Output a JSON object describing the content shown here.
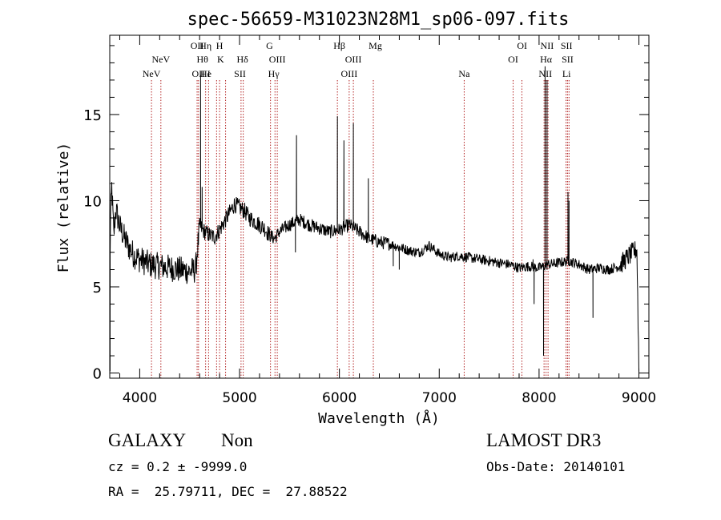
{
  "chart_data": {
    "type": "line",
    "title": "spec-56659-M31023N28M1_sp06-097.fits",
    "xlabel": "Wavelength (Å)",
    "ylabel": "Flux (relative)",
    "xlim": [
      3700,
      9100
    ],
    "ylim": [
      -0.3,
      19.6
    ],
    "xticks": [
      4000,
      5000,
      6000,
      7000,
      8000,
      9000
    ],
    "xtick_labels": [
      "4000",
      "5000",
      "6000",
      "7000",
      "8000",
      "9000"
    ],
    "yticks": [
      0,
      5,
      10,
      15
    ],
    "ytick_labels": [
      "0",
      "5",
      "10",
      "15"
    ],
    "series": [
      {
        "name": "spectrum",
        "anchors": [
          [
            3700,
            2.0
          ],
          [
            3705,
            8.5
          ],
          [
            3720,
            10.8
          ],
          [
            3740,
            8.0
          ],
          [
            3760,
            9.5
          ],
          [
            3800,
            8.5
          ],
          [
            3850,
            7.8
          ],
          [
            3900,
            7.2
          ],
          [
            3950,
            6.8
          ],
          [
            4000,
            6.6
          ],
          [
            4100,
            6.3
          ],
          [
            4200,
            6.2
          ],
          [
            4300,
            6.1
          ],
          [
            4400,
            6.0
          ],
          [
            4500,
            5.9
          ],
          [
            4560,
            6.0
          ],
          [
            4600,
            8.5
          ],
          [
            4650,
            8.2
          ],
          [
            4700,
            8.0
          ],
          [
            4750,
            7.9
          ],
          [
            4800,
            8.3
          ],
          [
            4850,
            8.8
          ],
          [
            4900,
            9.3
          ],
          [
            4950,
            9.8
          ],
          [
            5000,
            9.6
          ],
          [
            5050,
            9.4
          ],
          [
            5100,
            9.0
          ],
          [
            5150,
            8.8
          ],
          [
            5200,
            8.6
          ],
          [
            5250,
            8.4
          ],
          [
            5300,
            8.0
          ],
          [
            5350,
            7.8
          ],
          [
            5400,
            8.2
          ],
          [
            5500,
            8.6
          ],
          [
            5600,
            8.9
          ],
          [
            5700,
            8.6
          ],
          [
            5800,
            8.4
          ],
          [
            5900,
            8.2
          ],
          [
            6000,
            8.3
          ],
          [
            6100,
            8.6
          ],
          [
            6200,
            8.2
          ],
          [
            6300,
            7.8
          ],
          [
            6400,
            7.6
          ],
          [
            6500,
            7.5
          ],
          [
            6600,
            7.3
          ],
          [
            6700,
            7.1
          ],
          [
            6800,
            7.0
          ],
          [
            6900,
            7.4
          ],
          [
            7000,
            6.9
          ],
          [
            7100,
            6.7
          ],
          [
            7200,
            6.8
          ],
          [
            7300,
            6.7
          ],
          [
            7400,
            6.6
          ],
          [
            7500,
            6.5
          ],
          [
            7600,
            6.4
          ],
          [
            7700,
            6.3
          ],
          [
            7800,
            6.1
          ],
          [
            7900,
            6.2
          ],
          [
            8000,
            6.1
          ],
          [
            8100,
            6.3
          ],
          [
            8200,
            6.4
          ],
          [
            8300,
            6.5
          ],
          [
            8400,
            6.3
          ],
          [
            8500,
            6.0
          ],
          [
            8600,
            6.1
          ],
          [
            8700,
            6.0
          ],
          [
            8800,
            6.2
          ],
          [
            8900,
            6.8
          ],
          [
            8980,
            7.2
          ],
          [
            9000,
            0.3
          ]
        ],
        "features": [
          [
            4610,
            17.3
          ],
          [
            4625,
            10.8
          ],
          [
            5570,
            13.8
          ],
          [
            5980,
            14.9
          ],
          [
            6045,
            13.5
          ],
          [
            6140,
            14.5
          ],
          [
            6290,
            11.3
          ],
          [
            8060,
            17.8
          ],
          [
            8080,
            17.0
          ],
          [
            8290,
            10.5
          ],
          [
            8300,
            10.0
          ],
          [
            3703,
            0.1
          ],
          [
            5560,
            7.0
          ],
          [
            6600,
            6.0
          ],
          [
            6540,
            6.2
          ],
          [
            7940,
            6.6
          ],
          [
            7950,
            4.0
          ],
          [
            8045,
            1.0
          ],
          [
            8540,
            3.2
          ]
        ]
      }
    ],
    "line_markers": [
      {
        "label": "NeV",
        "wavelength": 4118,
        "row": 3
      },
      {
        "label": "NeV",
        "wavelength": 4212,
        "row": 2
      },
      {
        "label": "OII",
        "wavelength": 4575,
        "row": 1
      },
      {
        "label": "OII",
        "wavelength": 4589,
        "row": 3
      },
      {
        "label": "Hη",
        "wavelength": 4660,
        "row": 1
      },
      {
        "label": "Hθ",
        "wavelength": 4628,
        "row": 2
      },
      {
        "label": "He",
        "wavelength": 4663,
        "row": 3
      },
      {
        "label": "I",
        "wavelength": 4692,
        "row": 3
      },
      {
        "label": "H",
        "wavelength": 4800,
        "row": 1
      },
      {
        "label": "K",
        "wavelength": 4810,
        "row": 2
      },
      {
        "label": "Hδ",
        "wavelength": 5029,
        "row": 2
      },
      {
        "label": "SII",
        "wavelength": 5004,
        "row": 3
      },
      {
        "label": "G",
        "wavelength": 5300,
        "row": 1
      },
      {
        "label": "OIII",
        "wavelength": 5378,
        "row": 2
      },
      {
        "label": "Hγ",
        "wavelength": 5342,
        "row": 3
      },
      {
        "label": "Hβ",
        "wavelength": 6000,
        "row": 1
      },
      {
        "label": "OIII",
        "wavelength": 6140,
        "row": 2
      },
      {
        "label": "OIII",
        "wavelength": 6098,
        "row": 3
      },
      {
        "label": "Mg",
        "wavelength": 6360,
        "row": 1
      },
      {
        "label": "Na",
        "wavelength": 7250,
        "row": 3
      },
      {
        "label": "OI",
        "wavelength": 7830,
        "row": 1
      },
      {
        "label": "OI",
        "wavelength": 7740,
        "row": 2
      },
      {
        "label": "NII",
        "wavelength": 8080,
        "row": 1
      },
      {
        "label": "Hα",
        "wavelength": 8070,
        "row": 2
      },
      {
        "label": "NII",
        "wavelength": 8063,
        "row": 3
      },
      {
        "label": "SII",
        "wavelength": 8275,
        "row": 1
      },
      {
        "label": "SII",
        "wavelength": 8285,
        "row": 2
      },
      {
        "label": "Li",
        "wavelength": 8275,
        "row": 3
      }
    ],
    "marker_lines": [
      4118,
      4212,
      4575,
      4589,
      4660,
      4690,
      4770,
      4800,
      4860,
      5015,
      5037,
      5310,
      5355,
      5378,
      5980,
      6098,
      6140,
      6340,
      7250,
      7740,
      7828,
      8050,
      8070,
      8090,
      8270,
      8285,
      8300
    ]
  },
  "info": {
    "class_label": "GALAXY",
    "subclass_label": "Non",
    "cz_line": "cz = 0.2 ± -9999.0",
    "coords_line": "RA =  25.79711, DEC =  27.88522",
    "survey_label": "LAMOST DR3",
    "obs_date": "Obs-Date: 20140101"
  },
  "colors": {
    "axis": "#000000",
    "spectrum": "#000000",
    "marker": "#b22222",
    "background": "#ffffff"
  }
}
